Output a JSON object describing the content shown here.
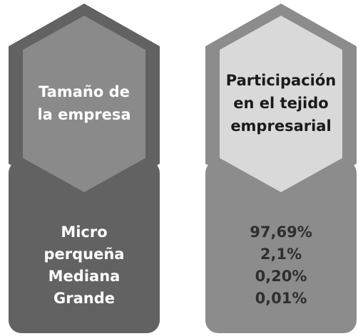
{
  "columns": [
    {
      "header": [
        "Tamaño de",
        "la empresa"
      ],
      "items": [
        "Micro",
        "perqueña",
        "Mediana",
        "Grande"
      ]
    },
    {
      "header": [
        "Participación",
        "en el tejido",
        "empresarial"
      ],
      "items": [
        "97,69%",
        "2,1%",
        "0,20%",
        "0,01%"
      ]
    }
  ]
}
